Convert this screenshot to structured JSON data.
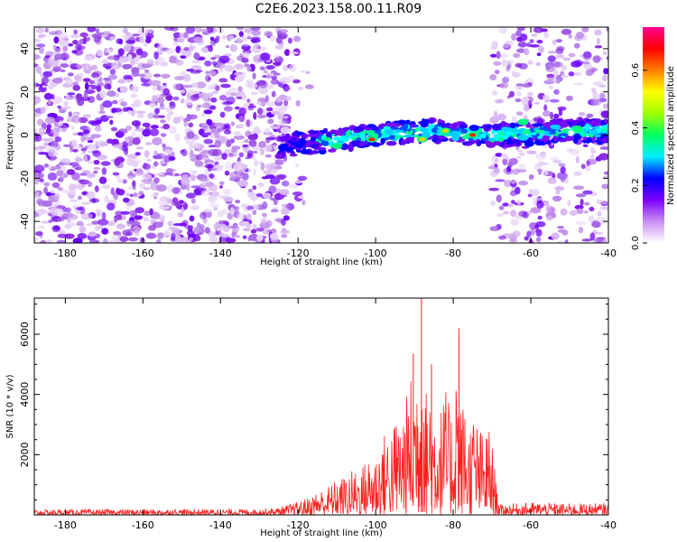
{
  "page_title": "C2E6.2023.158.00.11.R09",
  "chart_data": [
    {
      "type": "heatmap",
      "title": "C2E6.2023.158.00.11.R09",
      "xlabel": "Height of straight line (km)",
      "ylabel": "Frequency (Hz)",
      "xlim": [
        -188,
        -40
      ],
      "ylim": [
        -50,
        50
      ],
      "x_ticks": [
        -180,
        -160,
        -140,
        -120,
        -100,
        -80,
        -60,
        -40
      ],
      "y_ticks": [
        -40,
        -20,
        0,
        20,
        40
      ],
      "colorbar": {
        "label": "Normalized spectral amplitude",
        "range": [
          0.0,
          0.75
        ],
        "ticks": [
          0.0,
          0.2,
          0.4,
          0.6
        ],
        "colors": [
          "#ffffff",
          "#c890f0",
          "#7a00ff",
          "#0000ff",
          "#00f0ff",
          "#00ff60",
          "#a0ff00",
          "#ffff00",
          "#ff8000",
          "#ff0000",
          "#ff0090"
        ]
      },
      "noise_regions": [
        {
          "x": [
            -188,
            -122
          ],
          "density": "dense"
        },
        {
          "x": [
            -122,
            -117
          ],
          "density": "sparse"
        },
        {
          "x": [
            -70,
            -40
          ],
          "density": "medium"
        }
      ],
      "signal_band": {
        "x": [
          -125,
          -40
        ],
        "center_freq": [
          -5,
          -4,
          -3,
          -2,
          -1,
          0,
          1,
          2,
          2,
          1,
          0,
          0,
          1,
          2,
          2
        ],
        "center_x": [
          -125,
          -120,
          -115,
          -110,
          -105,
          -100,
          -95,
          -90,
          -85,
          -80,
          -75,
          -70,
          -60,
          -50,
          -40
        ],
        "peaks": [
          {
            "x": -101,
            "freq": -2,
            "amplitude": 0.7
          },
          {
            "x": -88,
            "freq": -2,
            "amplitude": 0.6
          },
          {
            "x": -75,
            "freq": 0,
            "amplitude": 0.7
          },
          {
            "x": -82,
            "freq": 2,
            "amplitude": 0.5
          },
          {
            "x": -110,
            "freq": -5,
            "amplitude": 0.45
          },
          {
            "x": -62,
            "freq": 6,
            "amplitude": 0.3
          },
          {
            "x": -48,
            "freq": 3,
            "amplitude": 0.25
          }
        ]
      }
    },
    {
      "type": "line",
      "xlabel": "Height of straight line (km)",
      "ylabel": "SNR (10 * v/v)",
      "xlim": [
        -188,
        -40
      ],
      "ylim": [
        0,
        7200
      ],
      "x_ticks": [
        -180,
        -160,
        -140,
        -120,
        -100,
        -80,
        -60,
        -40
      ],
      "y_ticks": [
        2000,
        4000,
        6000
      ],
      "line_color": "#ff1f1f",
      "envelope_x": [
        -188,
        -130,
        -125,
        -120,
        -117,
        -115,
        -112,
        -110,
        -108,
        -106,
        -104,
        -102,
        -100,
        -98,
        -96,
        -94,
        -92,
        -90,
        -89,
        -88,
        -87,
        -86,
        -85,
        -84,
        -83,
        -82,
        -81,
        -80,
        -79,
        -78,
        -77,
        -76,
        -75,
        -74,
        -73,
        -72,
        -71,
        -70,
        -69,
        -68,
        -60,
        -50,
        -40
      ],
      "envelope_y": [
        180,
        200,
        250,
        450,
        600,
        800,
        1000,
        1200,
        1300,
        1500,
        1600,
        1900,
        2100,
        2700,
        3000,
        3400,
        4000,
        5300,
        5200,
        7200,
        4200,
        5000,
        3800,
        4300,
        3600,
        4300,
        3600,
        3600,
        6200,
        3600,
        4000,
        3000,
        3500,
        3200,
        2900,
        2600,
        3100,
        2400,
        1200,
        350,
        420,
        380,
        400
      ]
    }
  ]
}
